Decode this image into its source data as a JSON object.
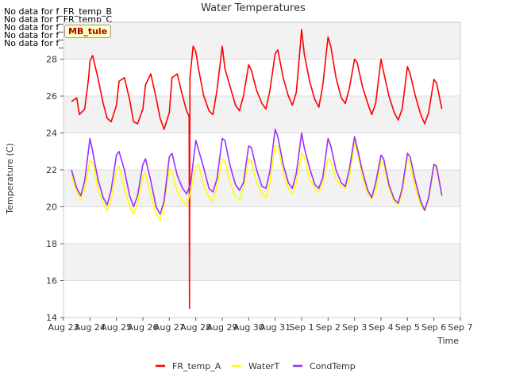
{
  "notices": [
    "No data for f_FR_temp_B",
    "No data for f_FR_temp_C",
    "No data for f_FD_Temp_1",
    "No data for f_Temp_Inlet",
    "No data for f_WaterTemp_CTD"
  ],
  "badge": "MB_tule",
  "chart_data": {
    "type": "line",
    "title": "Water Temperatures",
    "xlabel": "Time",
    "ylabel": "Temperature (C)",
    "xlim": [
      0,
      15
    ],
    "ylim": [
      14,
      30
    ],
    "yticks": [
      14,
      16,
      18,
      20,
      22,
      24,
      26,
      28
    ],
    "xticks": [
      "Aug 23",
      "Aug 24",
      "Aug 25",
      "Aug 26",
      "Aug 27",
      "Aug 28",
      "Aug 29",
      "Aug 30",
      "Aug 31",
      "Sep 1",
      "Sep 2",
      "Sep 3",
      "Sep 4",
      "Sep 5",
      "Sep 6",
      "Sep 7"
    ],
    "x_unit": "days since Aug 23",
    "series": [
      {
        "name": "FR_temp_A",
        "color": "#ff0000",
        "x": [
          0.3,
          0.5,
          0.6,
          0.8,
          0.95,
          1.0,
          1.1,
          1.3,
          1.5,
          1.65,
          1.8,
          2.0,
          2.1,
          2.3,
          2.5,
          2.65,
          2.8,
          3.0,
          3.1,
          3.3,
          3.5,
          3.65,
          3.8,
          4.0,
          4.1,
          4.3,
          4.5,
          4.65,
          4.75,
          4.76,
          4.78,
          4.9,
          5.0,
          5.1,
          5.3,
          5.5,
          5.65,
          5.8,
          6.0,
          6.1,
          6.3,
          6.5,
          6.65,
          6.8,
          7.0,
          7.1,
          7.3,
          7.5,
          7.65,
          7.8,
          8.0,
          8.1,
          8.3,
          8.5,
          8.65,
          8.8,
          9.0,
          9.1,
          9.3,
          9.5,
          9.65,
          9.8,
          10.0,
          10.1,
          10.3,
          10.5,
          10.65,
          10.8,
          11.0,
          11.1,
          11.3,
          11.5,
          11.65,
          11.8,
          12.0,
          12.1,
          12.3,
          12.5,
          12.65,
          12.8,
          13.0,
          13.1,
          13.3,
          13.5,
          13.65,
          13.8,
          14.0,
          14.1,
          14.3
        ],
        "y": [
          25.7,
          25.9,
          25.0,
          25.3,
          27.0,
          27.9,
          28.2,
          27.0,
          25.6,
          24.8,
          24.6,
          25.5,
          26.8,
          27.0,
          25.8,
          24.6,
          24.5,
          25.3,
          26.6,
          27.2,
          25.9,
          24.8,
          24.2,
          25.1,
          27.0,
          27.2,
          26.0,
          25.2,
          24.9,
          14.5,
          27.0,
          28.7,
          28.4,
          27.5,
          26.0,
          25.2,
          25.0,
          26.3,
          28.7,
          27.5,
          26.5,
          25.5,
          25.2,
          26.0,
          27.7,
          27.4,
          26.3,
          25.6,
          25.3,
          26.3,
          28.3,
          28.5,
          27.0,
          26.0,
          25.5,
          26.2,
          29.6,
          28.3,
          26.8,
          25.8,
          25.4,
          26.6,
          29.2,
          28.7,
          27.0,
          25.9,
          25.6,
          26.4,
          28.0,
          27.8,
          26.5,
          25.6,
          25.0,
          25.6,
          28.0,
          27.3,
          26.0,
          25.1,
          24.7,
          25.3,
          27.6,
          27.2,
          26.0,
          25.0,
          24.5,
          25.1,
          26.9,
          26.7,
          25.3
        ]
      },
      {
        "name": "WaterT",
        "color": "#ffff00",
        "x": [
          0.3,
          0.5,
          0.65,
          0.8,
          1.0,
          1.1,
          1.3,
          1.5,
          1.65,
          1.8,
          2.0,
          2.1,
          2.3,
          2.5,
          2.65,
          2.8,
          3.0,
          3.1,
          3.3,
          3.5,
          3.65,
          3.8,
          4.0,
          4.1,
          4.3,
          4.5,
          4.65,
          4.8,
          5.0,
          5.1,
          5.3,
          5.5,
          5.65,
          5.8,
          6.0,
          6.1,
          6.3,
          6.5,
          6.65,
          6.8,
          7.0,
          7.1,
          7.3,
          7.5,
          7.65,
          7.8,
          8.0,
          8.1,
          8.3,
          8.5,
          8.65,
          8.8,
          9.0,
          9.1,
          9.3,
          9.5,
          9.65,
          9.8,
          10.0,
          10.1,
          10.3,
          10.5,
          10.65,
          10.8,
          11.0,
          11.1,
          11.3,
          11.5,
          11.65,
          11.8,
          12.0,
          12.1,
          12.3,
          12.5,
          12.65,
          12.8,
          13.0,
          13.1,
          13.3,
          13.5,
          13.65,
          13.8,
          14.0,
          14.1,
          14.3
        ],
        "y": [
          21.7,
          20.8,
          20.4,
          21.0,
          22.5,
          22.4,
          21.0,
          20.2,
          19.8,
          20.4,
          22.0,
          22.2,
          21.0,
          20.0,
          19.6,
          20.2,
          21.7,
          21.8,
          20.7,
          19.6,
          19.3,
          20.1,
          22.1,
          21.9,
          20.8,
          20.3,
          20.1,
          20.8,
          22.2,
          22.3,
          21.2,
          20.5,
          20.3,
          21.1,
          22.6,
          22.5,
          21.3,
          20.5,
          20.4,
          21.0,
          22.6,
          22.5,
          21.3,
          20.7,
          20.5,
          21.3,
          23.3,
          23.3,
          21.9,
          21.0,
          20.7,
          21.3,
          22.9,
          22.7,
          21.5,
          21.0,
          20.8,
          21.3,
          22.6,
          22.5,
          21.5,
          21.1,
          21.0,
          21.6,
          23.5,
          23.0,
          21.6,
          20.7,
          20.4,
          20.9,
          22.5,
          22.3,
          21.0,
          20.3,
          20.1,
          20.7,
          22.7,
          22.3,
          21.0,
          20.1,
          19.8,
          20.4,
          22.2,
          22.0,
          20.6
        ]
      },
      {
        "name": "CondTemp",
        "color": "#9b30ff",
        "x": [
          0.3,
          0.5,
          0.65,
          0.8,
          1.0,
          1.1,
          1.3,
          1.5,
          1.65,
          1.8,
          2.0,
          2.1,
          2.3,
          2.5,
          2.65,
          2.8,
          3.0,
          3.1,
          3.3,
          3.5,
          3.65,
          3.8,
          4.0,
          4.1,
          4.3,
          4.5,
          4.65,
          4.8,
          5.0,
          5.1,
          5.3,
          5.5,
          5.65,
          5.8,
          6.0,
          6.1,
          6.3,
          6.5,
          6.65,
          6.8,
          7.0,
          7.1,
          7.3,
          7.5,
          7.65,
          7.8,
          8.0,
          8.1,
          8.3,
          8.5,
          8.65,
          8.8,
          9.0,
          9.1,
          9.3,
          9.5,
          9.65,
          9.8,
          10.0,
          10.1,
          10.3,
          10.5,
          10.65,
          10.8,
          11.0,
          11.1,
          11.3,
          11.5,
          11.65,
          11.8,
          12.0,
          12.1,
          12.3,
          12.5,
          12.65,
          12.8,
          13.0,
          13.1,
          13.3,
          13.5,
          13.65,
          13.8,
          14.0,
          14.1,
          14.3
        ],
        "y": [
          22.0,
          21.0,
          20.6,
          21.4,
          23.7,
          23.0,
          21.5,
          20.5,
          20.1,
          20.9,
          22.8,
          23.0,
          22.0,
          20.6,
          20.0,
          20.6,
          22.3,
          22.6,
          21.4,
          20.0,
          19.6,
          20.3,
          22.7,
          22.9,
          21.7,
          21.0,
          20.7,
          21.2,
          23.6,
          23.1,
          22.1,
          21.0,
          20.8,
          21.5,
          23.7,
          23.6,
          22.2,
          21.2,
          20.9,
          21.3,
          23.3,
          23.2,
          22.0,
          21.1,
          21.0,
          21.9,
          24.2,
          23.8,
          22.3,
          21.3,
          21.0,
          21.8,
          24.0,
          23.2,
          22.1,
          21.2,
          21.0,
          21.6,
          23.7,
          23.3,
          22.0,
          21.3,
          21.1,
          22.0,
          23.8,
          23.2,
          21.9,
          20.9,
          20.5,
          21.3,
          22.8,
          22.6,
          21.2,
          20.4,
          20.2,
          21.0,
          22.9,
          22.7,
          21.4,
          20.3,
          19.8,
          20.5,
          22.3,
          22.2,
          20.6
        ]
      }
    ],
    "legend": "bottom-center",
    "grid": "horizontal bands"
  }
}
